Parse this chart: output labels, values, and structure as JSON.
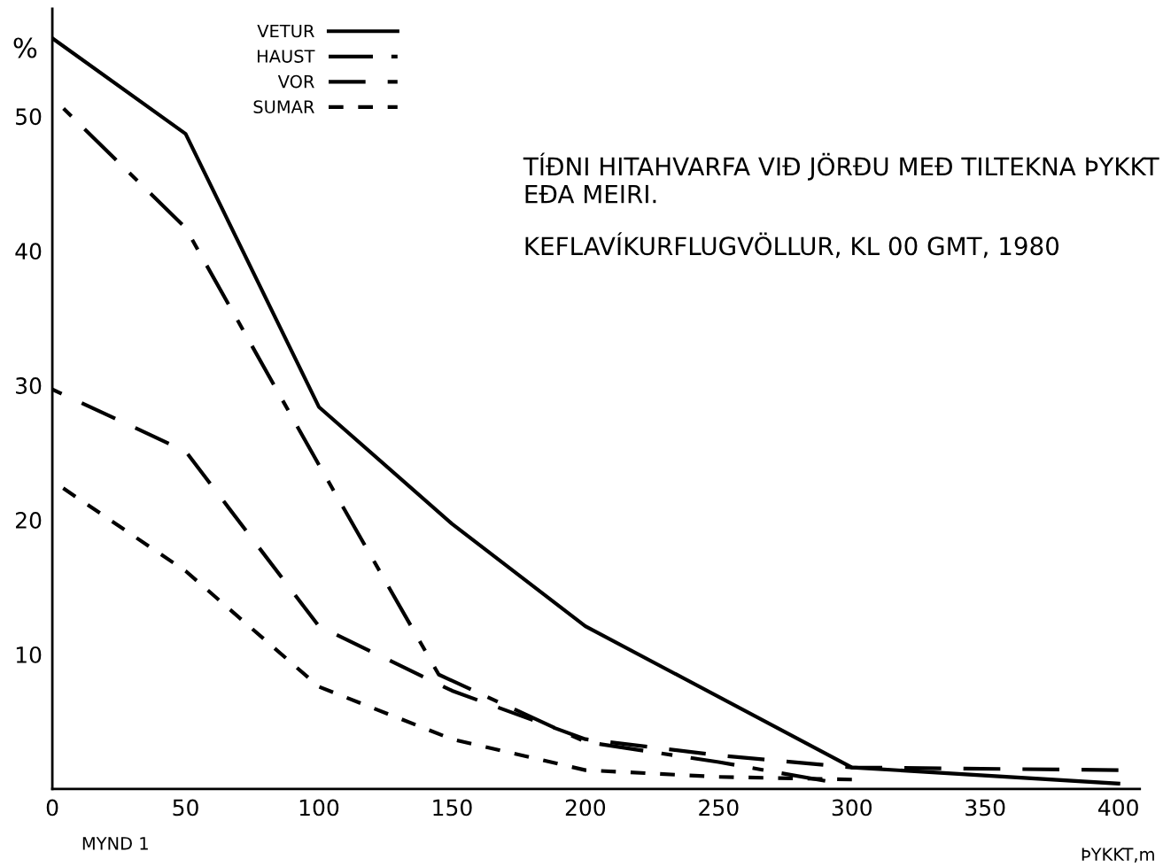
{
  "chart_data": {
    "type": "line",
    "title": "TÍÐNI HITAHVARFA VIÐ JÖRÐU MEÐ TILTEKNA ÞYKKT EÐA MEIRI.",
    "subtitle": "KEFLAVÍKURFLUGVÖLLUR, KL 00 GMT, 1980",
    "xlabel": "ÞYKKT,m",
    "ylabel": "%",
    "annotations": [
      "MYND 1"
    ],
    "series": [
      {
        "name": "VETUR",
        "color": "#000000",
        "line_style": "solid",
        "x": [
          0,
          50,
          100,
          150,
          200,
          300,
          400
        ],
        "values": [
          55.8,
          48.7,
          28.4,
          19.7,
          12.1,
          1.6,
          0.4
        ]
      },
      {
        "name": "HAUST",
        "color": "#000000",
        "line_style": "dashdot",
        "x": [
          0,
          50,
          100,
          145,
          200,
          250,
          290
        ],
        "values": [
          51.4,
          41.7,
          24.1,
          8.5,
          3.5,
          2.0,
          0.6
        ]
      },
      {
        "name": "VOR",
        "color": "#000000",
        "line_style": "dashed",
        "x": [
          0,
          50,
          100,
          150,
          200,
          250,
          300,
          400
        ],
        "values": [
          29.7,
          25.1,
          12.1,
          7.3,
          3.7,
          2.5,
          1.6,
          1.4
        ]
      },
      {
        "name": "SUMAR",
        "color": "#000000",
        "line_style": "dotted",
        "x": [
          0,
          50,
          100,
          150,
          200,
          250,
          300
        ],
        "values": [
          22.9,
          16.2,
          7.6,
          3.7,
          1.4,
          0.9,
          0.7
        ]
      }
    ],
    "xlim": [
      0,
      408
    ],
    "ylim": [
      0,
      58
    ],
    "xticks": [
      0,
      50,
      100,
      150,
      200,
      250,
      300,
      350,
      400
    ],
    "yticks": [
      10,
      20,
      30,
      40,
      50
    ],
    "grid": false,
    "legend": "top left",
    "marker": "none"
  }
}
